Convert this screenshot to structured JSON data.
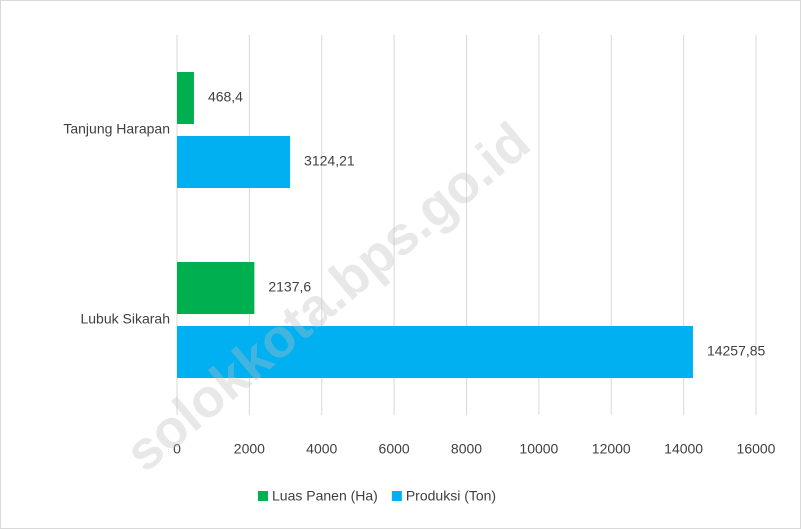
{
  "chart_data": {
    "type": "bar",
    "orientation": "horizontal",
    "categories": [
      "Tanjung Harapan",
      "Lubuk Sikarah"
    ],
    "series": [
      {
        "name": "Luas Panen (Ha)",
        "color": "#00b050",
        "values": [
          468.4,
          2137.6
        ],
        "value_labels": [
          "468,4",
          "2137,6"
        ]
      },
      {
        "name": "Produksi (Ton)",
        "color": "#00b0f0",
        "values": [
          3124.21,
          14257.85
        ],
        "value_labels": [
          "3124,21",
          "14257,85"
        ]
      }
    ],
    "xlim": [
      0,
      16000
    ],
    "xticks": [
      0,
      2000,
      4000,
      6000,
      8000,
      10000,
      12000,
      14000,
      16000
    ],
    "grid": true,
    "legend": "bottom",
    "watermark": "solokkota.bps.go.id"
  }
}
